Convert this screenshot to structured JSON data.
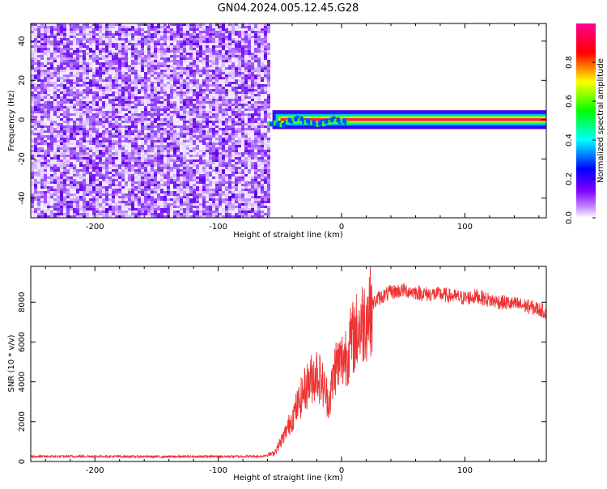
{
  "figure": {
    "title": "GN04.2024.005.12.45.G28"
  },
  "chart_data": [
    {
      "type": "heatmap",
      "xlabel": "Height of straight line (km)",
      "ylabel": "Frequency (Hz)",
      "xlim": [
        -252,
        166
      ],
      "ylim": [
        -50,
        49
      ],
      "xticks": [
        -200,
        -100,
        0,
        100
      ],
      "yticks": [
        -40,
        -20,
        0,
        20,
        40
      ],
      "grid": false,
      "noise_region_x": [
        -252,
        -60
      ],
      "signal_start_x": -60,
      "signal_band_hz": [
        -3,
        3
      ],
      "colorbar": {
        "label": "Normalized spectral amplitude",
        "range": [
          0.0,
          1.0
        ],
        "ticks": [
          0.0,
          0.2,
          0.4,
          0.6,
          0.8
        ],
        "colormap": [
          "#ffffff",
          "#8000ff",
          "#0000ff",
          "#00ffff",
          "#00ff00",
          "#ffff00",
          "#ff0000",
          "#ff00a0"
        ]
      },
      "series_color_noise": "#7a00ff",
      "signal_color": "#ff2040"
    },
    {
      "type": "line",
      "xlabel": "Height of straight line (km)",
      "ylabel": "SNR (10 * v/v)",
      "xlim": [
        -252,
        166
      ],
      "ylim": [
        0,
        9800
      ],
      "xticks": [
        -200,
        -100,
        0,
        100
      ],
      "yticks": [
        0,
        2000,
        4000,
        6000,
        8000
      ],
      "grid": false,
      "color": "#ee3333",
      "x": [
        -252,
        -200,
        -150,
        -100,
        -65,
        -55,
        -50,
        -45,
        -40,
        -35,
        -30,
        -25,
        -20,
        -15,
        -10,
        -5,
        0,
        5,
        10,
        15,
        20,
        25,
        30,
        40,
        50,
        60,
        70,
        80,
        90,
        100,
        110,
        120,
        130,
        140,
        150,
        160,
        166
      ],
      "values": [
        250,
        260,
        240,
        250,
        260,
        400,
        900,
        1500,
        2200,
        2900,
        3600,
        4100,
        4500,
        3800,
        3000,
        4800,
        5000,
        5600,
        6300,
        6800,
        7300,
        7900,
        8200,
        8500,
        8600,
        8500,
        8400,
        8400,
        8300,
        8200,
        8300,
        8100,
        8000,
        7900,
        7800,
        7650,
        7500
      ]
    }
  ]
}
